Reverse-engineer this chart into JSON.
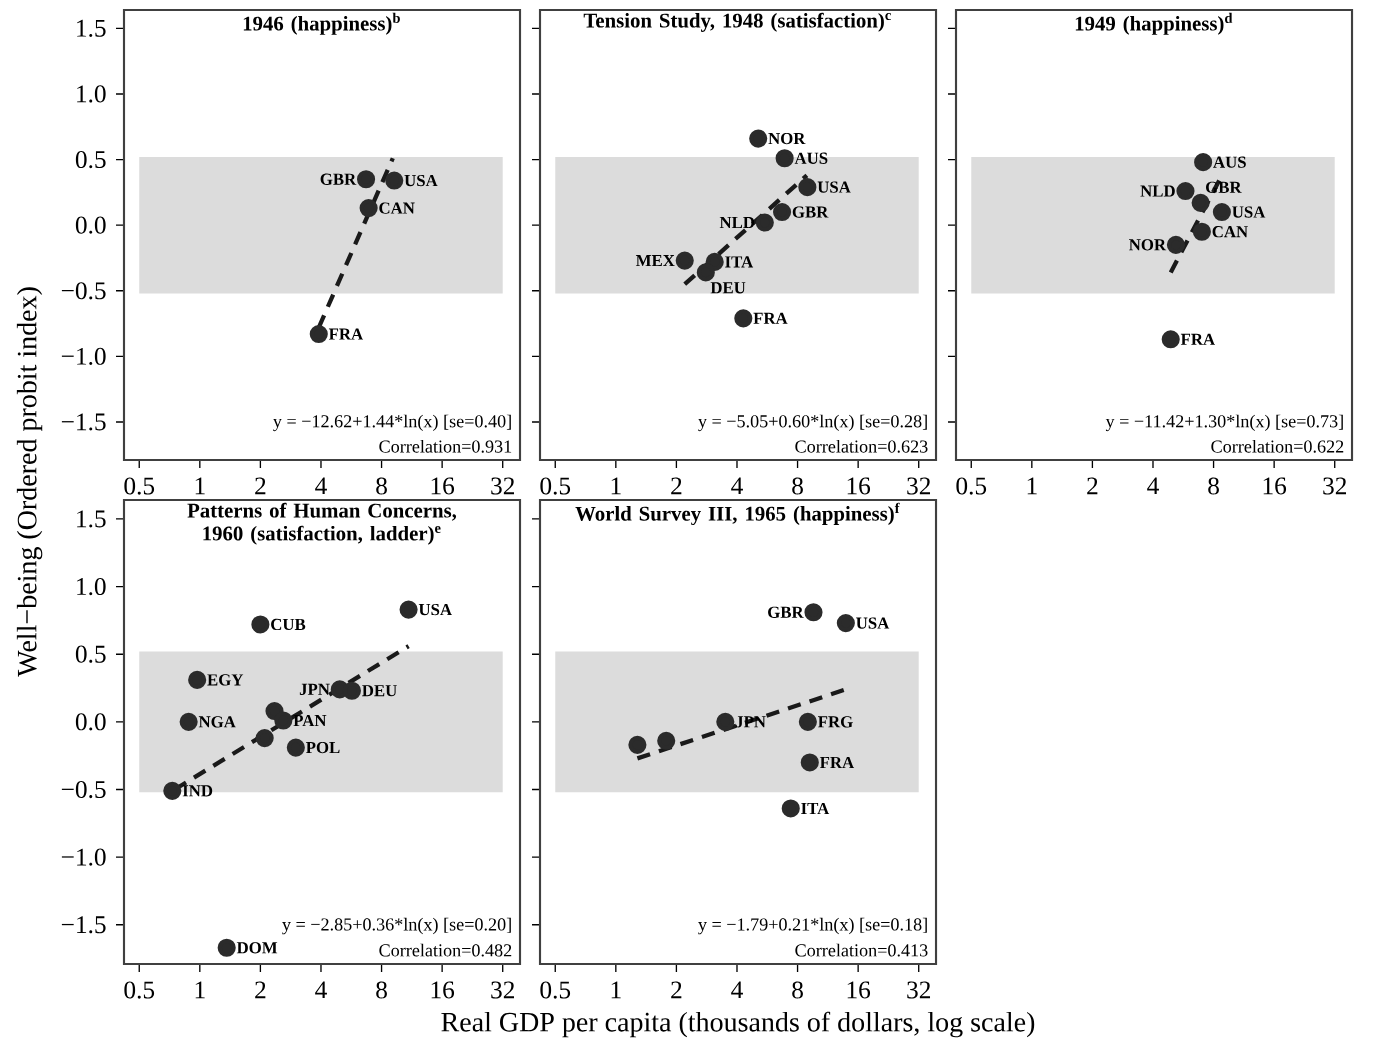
{
  "chart_data": [
    {
      "type": "scatter",
      "title": "1946 (happiness)$^{b}$",
      "log": "x",
      "marker": "circle",
      "xlim": [
        0.42,
        39
      ],
      "ylim": [
        -1.79,
        1.64
      ],
      "xticks": [
        0.5,
        1,
        2,
        4,
        8,
        16,
        32
      ],
      "yticks": [
        {
          "value": -1.5,
          "label": "−1.5"
        },
        {
          "value": -1,
          "label": "−1.0"
        },
        {
          "value": -0.5,
          "label": "−0.5"
        },
        {
          "value": 0,
          "label": "0.0"
        },
        {
          "value": 0.5,
          "label": "0.5"
        },
        {
          "value": 1,
          "label": "1.0"
        },
        {
          "value": 1.5,
          "label": "1.5"
        }
      ],
      "bands": [
        {
          "axis": "y",
          "from": -0.52,
          "to": 0.52,
          "color": "#dcdcdc"
        }
      ],
      "series": [
        {
          "color": "#2b2b2b",
          "x": [
            6.7,
            9.25,
            6.9,
            3.9
          ],
          "values": [
            0.35,
            0.34,
            0.13,
            -0.83
          ]
        },
        {
          "type": "line",
          "color": "#1a1a1a",
          "line_style": "dashed",
          "marker": "none",
          "x": [
            3.9,
            9.1
          ],
          "values": [
            -0.78,
            0.51
          ]
        }
      ],
      "annotations": [
        {
          "text": "GBR",
          "x": 6.7,
          "y": 0.35
        },
        {
          "text": "USA",
          "x": 9.25,
          "y": 0.34
        },
        {
          "text": "CAN",
          "x": 6.9,
          "y": 0.13
        },
        {
          "text": "FRA",
          "x": 3.9,
          "y": -0.83
        },
        "y = −12.62+1.44*ln(x) [se=0.40]",
        "Correlation=0.931"
      ]
    },
    {
      "type": "scatter",
      "title": "Tension Study, 1948 (satisfaction)$^{c}$",
      "log": "x",
      "marker": "circle",
      "tick_labels": "x",
      "xlim": [
        0.42,
        39
      ],
      "ylim": [
        -1.79,
        1.64
      ],
      "xticks": [
        0.5,
        1,
        2,
        4,
        8,
        16,
        32
      ],
      "yticks": [
        -1.5,
        -1,
        -0.5,
        0,
        0.5,
        1,
        1.5
      ],
      "bands": [
        {
          "axis": "y",
          "from": -0.52,
          "to": 0.52,
          "color": "#dcdcdc"
        }
      ],
      "series": [
        {
          "color": "#2b2b2b",
          "x": [
            5.1,
            6.9,
            8.95,
            6.7,
            5.5,
            2.2,
            3.1,
            2.8,
            4.3
          ],
          "values": [
            0.66,
            0.51,
            0.29,
            0.1,
            0.02,
            -0.27,
            -0.28,
            -0.36,
            -0.71
          ]
        },
        {
          "type": "line",
          "color": "#1a1a1a",
          "line_style": "dashed",
          "marker": "none",
          "x": [
            2.2,
            8.9
          ],
          "values": [
            -0.45,
            0.38
          ]
        }
      ],
      "annotations": [
        {
          "text": "NOR",
          "x": 5.1,
          "y": 0.66
        },
        {
          "text": "AUS",
          "x": 6.9,
          "y": 0.51
        },
        {
          "text": "USA",
          "x": 8.95,
          "y": 0.29
        },
        {
          "text": "GBR",
          "x": 6.7,
          "y": 0.1
        },
        {
          "text": "NLD",
          "x": 5.5,
          "y": 0.02
        },
        {
          "text": "MEX",
          "x": 2.2,
          "y": -0.27
        },
        {
          "text": "ITA",
          "x": 3.1,
          "y": -0.28
        },
        {
          "text": "DEU",
          "x": 2.8,
          "y": -0.36
        },
        {
          "text": "FRA",
          "x": 4.3,
          "y": -0.71
        },
        "y = −5.05+0.60*ln(x) [se=0.28]",
        "Correlation=0.623"
      ]
    },
    {
      "type": "scatter",
      "title": "1949 (happiness)$^{d}$",
      "log": "x",
      "marker": "circle",
      "tick_labels": "x",
      "xlim": [
        0.42,
        39
      ],
      "ylim": [
        -1.79,
        1.64
      ],
      "xticks": [
        0.5,
        1,
        2,
        4,
        8,
        16,
        32
      ],
      "yticks": [
        -1.5,
        -1,
        -0.5,
        0,
        0.5,
        1,
        1.5
      ],
      "bands": [
        {
          "axis": "y",
          "from": -0.52,
          "to": 0.52,
          "color": "#dcdcdc"
        }
      ],
      "series": [
        {
          "color": "#2b2b2b",
          "x": [
            7.1,
            5.8,
            6.9,
            8.8,
            7.0,
            5.2,
            4.9
          ],
          "values": [
            0.48,
            0.26,
            0.17,
            0.1,
            -0.05,
            -0.15,
            -0.87
          ]
        },
        {
          "type": "line",
          "color": "#1a1a1a",
          "line_style": "dashed",
          "marker": "none",
          "x": [
            4.9,
            8.8
          ],
          "values": [
            -0.36,
            0.38
          ]
        }
      ],
      "annotations": [
        {
          "text": "AUS",
          "x": 7.1,
          "y": 0.48
        },
        {
          "text": "NLD",
          "x": 5.8,
          "y": 0.26
        },
        {
          "text": "GBR",
          "x": 6.9,
          "y": 0.17
        },
        {
          "text": "USA",
          "x": 8.8,
          "y": 0.1
        },
        {
          "text": "CAN",
          "x": 7.0,
          "y": -0.05
        },
        {
          "text": "NOR",
          "x": 5.2,
          "y": -0.15
        },
        {
          "text": "FRA",
          "x": 4.9,
          "y": -0.87
        },
        "y = −11.42+1.30*ln(x) [se=0.73]",
        "Correlation=0.622"
      ]
    },
    {
      "type": "scatter",
      "title": "Patterns of Human Concerns, 1960 (satisfaction, ladder)$^{e}$",
      "ylabel": "Well−being (Ordered probit index)",
      "log": "x",
      "marker": "circle",
      "xlim": [
        0.42,
        39
      ],
      "ylim": [
        -1.79,
        1.64
      ],
      "xticks": [
        0.5,
        1,
        2,
        4,
        8,
        16,
        32
      ],
      "yticks": [
        {
          "value": -1.5,
          "label": "−1.5"
        },
        {
          "value": -1,
          "label": "−1.0"
        },
        {
          "value": -0.5,
          "label": "−0.5"
        },
        {
          "value": 0,
          "label": "0.0"
        },
        {
          "value": 0.5,
          "label": "0.5"
        },
        {
          "value": 1,
          "label": "1.0"
        },
        {
          "value": 1.5,
          "label": "1.5"
        }
      ],
      "bands": [
        {
          "axis": "y",
          "from": -0.52,
          "to": 0.52,
          "color": "#dcdcdc"
        }
      ],
      "series": [
        {
          "color": "#2b2b2b",
          "x": [
            10.9,
            2.0,
            0.97,
            0.88,
            0.73,
            1.36,
            4.96,
            5.7,
            2.35,
            2.6,
            2.1,
            3.0
          ],
          "values": [
            0.83,
            0.72,
            0.31,
            0.0,
            -0.51,
            -1.67,
            0.24,
            0.23,
            0.08,
            0.01,
            -0.12,
            -0.19
          ]
        },
        {
          "type": "line",
          "color": "#1a1a1a",
          "line_style": "dashed",
          "marker": "none",
          "x": [
            0.75,
            10.9
          ],
          "values": [
            -0.5,
            0.56
          ]
        }
      ],
      "annotations": [
        {
          "text": "USA",
          "x": 10.9,
          "y": 0.83
        },
        {
          "text": "CUB",
          "x": 2.0,
          "y": 0.72
        },
        {
          "text": "EGY",
          "x": 0.97,
          "y": 0.31
        },
        {
          "text": "NGA",
          "x": 0.88,
          "y": 0.0
        },
        {
          "text": "IND",
          "x": 0.73,
          "y": -0.51
        },
        {
          "text": "DOM",
          "x": 1.36,
          "y": -1.67
        },
        {
          "text": "JPN",
          "x": 4.96,
          "y": 0.24
        },
        {
          "text": "DEU",
          "x": 5.7,
          "y": 0.23
        },
        {
          "text": "PAN",
          "x": 2.6,
          "y": 0.01
        },
        {
          "text": "POL",
          "x": 3.0,
          "y": -0.19
        },
        "y = −2.85+0.36*ln(x) [se=0.20]",
        "Correlation=0.482"
      ]
    },
    {
      "type": "scatter",
      "title": "World Survey III, 1965 (happiness)$^{f}$",
      "xlabel": "Real GDP per capita (thousands of dollars, log scale)",
      "log": "x",
      "marker": "circle",
      "tick_labels": "x",
      "xlim": [
        0.42,
        39
      ],
      "ylim": [
        -1.79,
        1.64
      ],
      "xticks": [
        0.5,
        1,
        2,
        4,
        8,
        16,
        32
      ],
      "yticks": [
        -1.5,
        -1,
        -0.5,
        0,
        0.5,
        1,
        1.5
      ],
      "bands": [
        {
          "axis": "y",
          "from": -0.52,
          "to": 0.52,
          "color": "#dcdcdc"
        }
      ],
      "series": [
        {
          "color": "#2b2b2b",
          "x": [
            9.6,
            13.9,
            3.5,
            9.0,
            9.2,
            7.4,
            1.28,
            1.78
          ],
          "values": [
            0.81,
            0.73,
            0.0,
            0.0,
            -0.3,
            -0.64,
            -0.17,
            -0.14
          ]
        },
        {
          "type": "line",
          "color": "#1a1a1a",
          "line_style": "dashed",
          "marker": "none",
          "x": [
            1.28,
            13.9
          ],
          "values": [
            -0.27,
            0.24
          ]
        }
      ],
      "annotations": [
        {
          "text": "GBR",
          "x": 9.6,
          "y": 0.81
        },
        {
          "text": "USA",
          "x": 13.9,
          "y": 0.73
        },
        {
          "text": "JPN",
          "x": 3.5,
          "y": 0.0
        },
        {
          "text": "FRG",
          "x": 9.0,
          "y": 0.0
        },
        {
          "text": "FRA",
          "x": 9.2,
          "y": -0.3
        },
        {
          "text": "ITA",
          "x": 7.4,
          "y": -0.64
        },
        "y = −1.79+0.21*ln(x) [se=0.18]",
        "Correlation=0.413"
      ]
    }
  ]
}
